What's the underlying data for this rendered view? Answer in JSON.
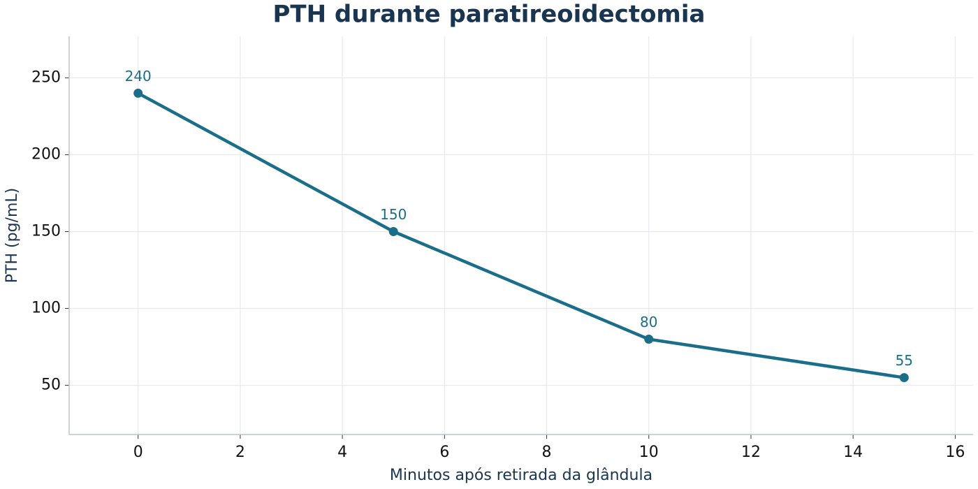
{
  "chart_data": {
    "type": "line",
    "title": "PTH durante paratireoidectomia",
    "x_label": "Minutos após retirada da glândula",
    "y_label": "PTH (pg/mL)",
    "x": [
      0,
      5,
      10,
      15
    ],
    "series": [
      {
        "name": "PTH",
        "color": "#1a6e8a",
        "values": [
          240,
          150,
          80,
          55
        ]
      }
    ],
    "xlim": [
      -1.35,
      16.35
    ],
    "xticks": [
      0,
      2,
      4,
      6,
      8,
      10,
      12,
      14,
      16
    ],
    "ylim": [
      18,
      277
    ],
    "yticks": [
      50,
      100,
      150,
      200,
      250
    ],
    "grid": true
  }
}
